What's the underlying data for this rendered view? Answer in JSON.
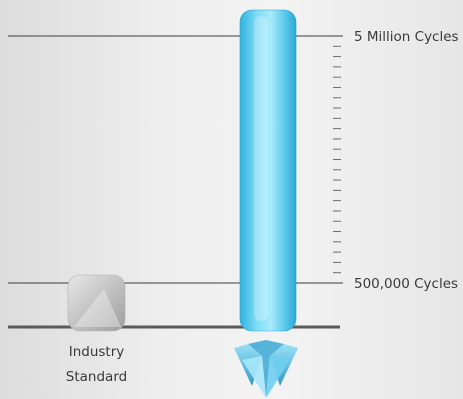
{
  "chart_data": {
    "type": "bar",
    "title": "",
    "xlabel": "",
    "ylabel": "",
    "categories": [
      "Industry Standard",
      "Diamond product"
    ],
    "category_labels": [
      [
        "Industry",
        "Standard"
      ],
      []
    ],
    "values": [
      500000,
      5000000
    ],
    "series_colors": [
      "#bdbdbd",
      "#4fc3e6"
    ],
    "reference_lines": [
      {
        "value": 5000000,
        "label": "5 Million Cycles"
      },
      {
        "value": 500000,
        "label": "500,000 Cycles"
      }
    ],
    "ylim": [
      0,
      5000000
    ],
    "grid": false,
    "legend": "none",
    "icons": [
      "diamond-logo-icon"
    ]
  }
}
